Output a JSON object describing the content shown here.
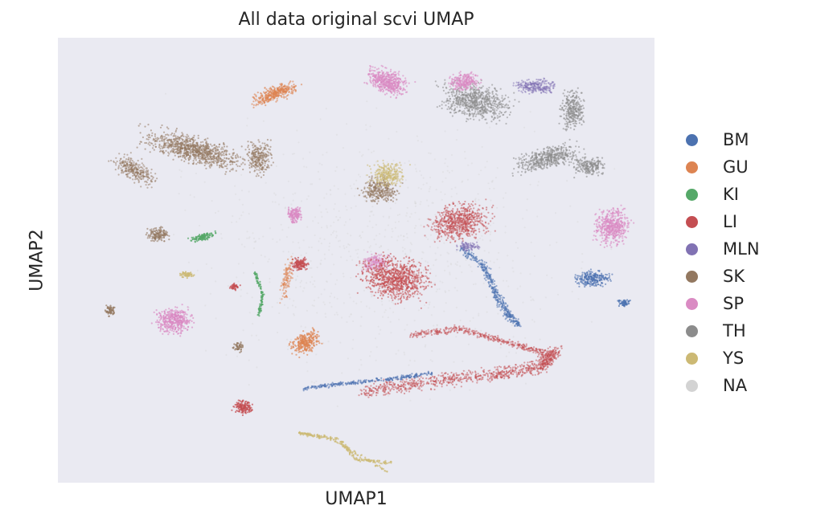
{
  "chart_data": {
    "type": "scatter",
    "title": "All data original scvi UMAP",
    "xlabel": "UMAP1",
    "ylabel": "UMAP2",
    "grid": false,
    "legend_position": "right",
    "legend": [
      {
        "name": "BM",
        "color": "#4c72b0"
      },
      {
        "name": "GU",
        "color": "#dd8452"
      },
      {
        "name": "KI",
        "color": "#55a868"
      },
      {
        "name": "LI",
        "color": "#c44e52"
      },
      {
        "name": "MLN",
        "color": "#8172b3"
      },
      {
        "name": "SK",
        "color": "#937860"
      },
      {
        "name": "SP",
        "color": "#da8bc3"
      },
      {
        "name": "TH",
        "color": "#8c8c8c"
      },
      {
        "name": "YS",
        "color": "#ccb974"
      },
      {
        "name": "NA",
        "color": "#d3d3d3"
      }
    ]
  }
}
